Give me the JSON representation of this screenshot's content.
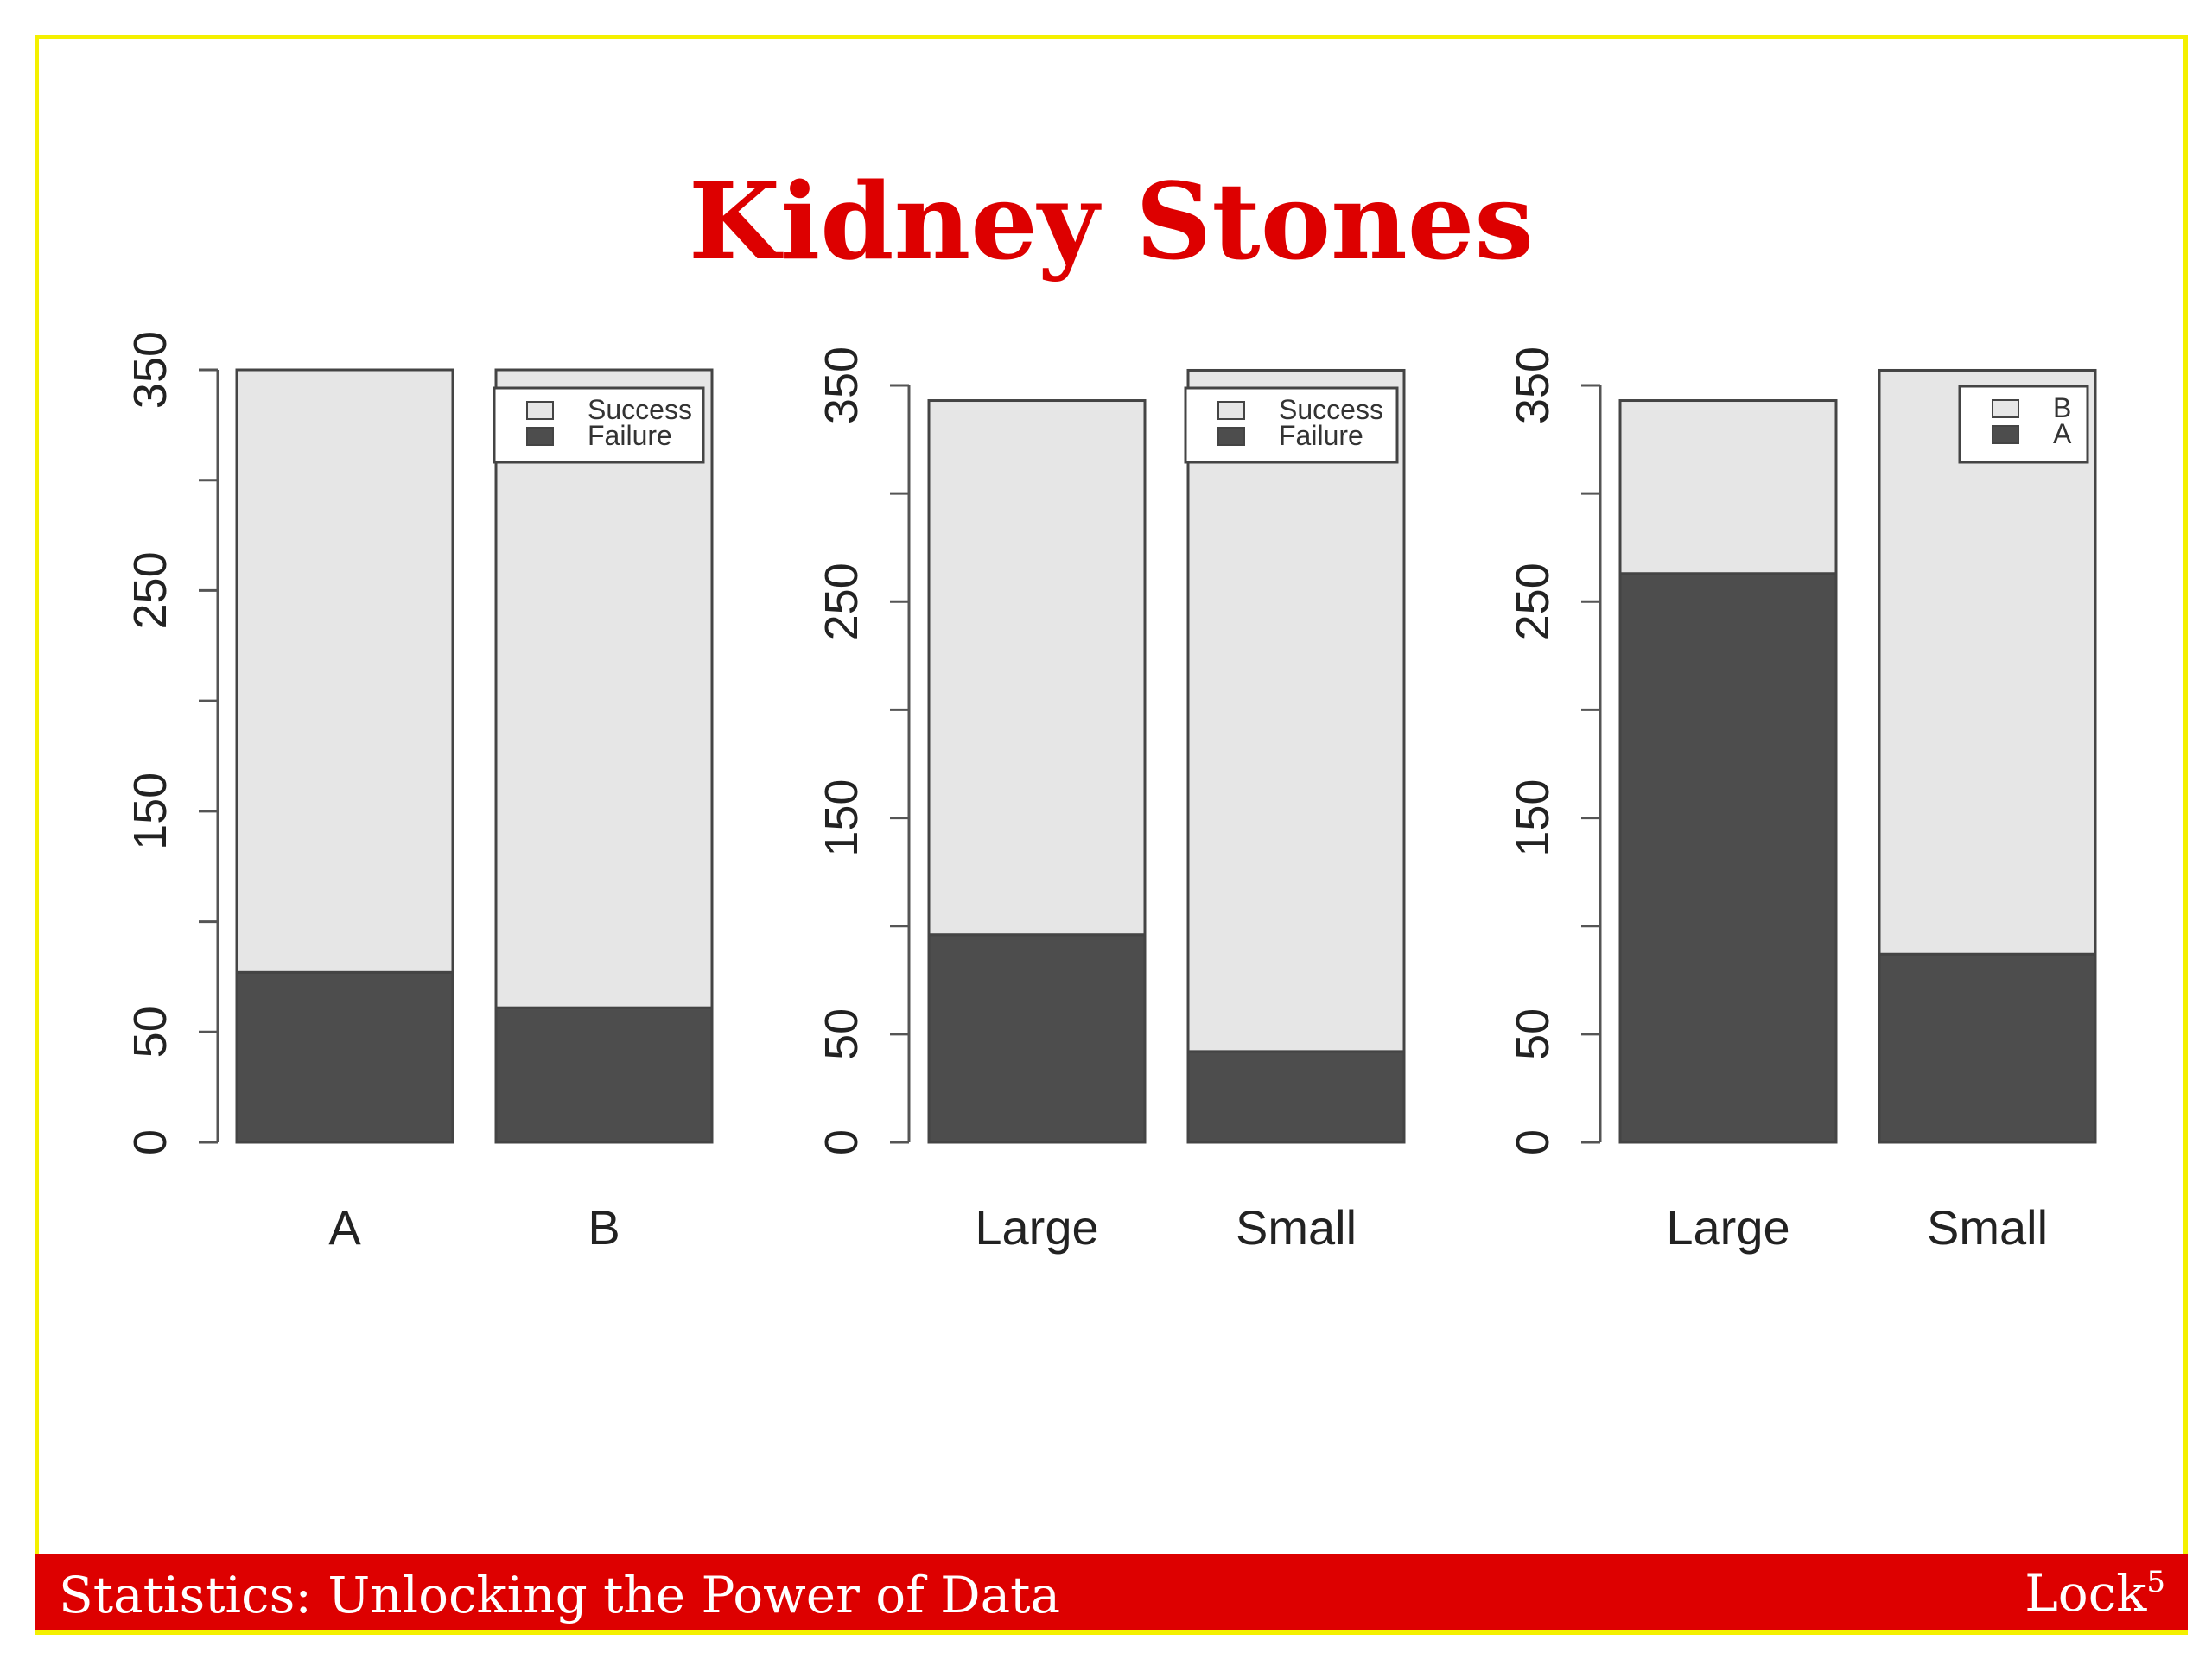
{
  "slide": {
    "title": "Kidney Stones",
    "footer_left": "Statistics: Unlocking the Power of Data",
    "footer_right": "Lock",
    "footer_right_sup": "5"
  },
  "colors": {
    "frame": "#f4f000",
    "title": "#dd0000",
    "footer_bg": "#dd0000",
    "bar_dark": "#4d4d4d",
    "bar_light": "#e6e6e6"
  },
  "chart_data": [
    {
      "type": "bar",
      "stacked": true,
      "categories": [
        "A",
        "B"
      ],
      "series": [
        {
          "name": "Failure",
          "values": [
            77,
            61
          ],
          "color": "#4d4d4d"
        },
        {
          "name": "Success",
          "values": [
            273,
            289
          ],
          "color": "#e6e6e6"
        }
      ],
      "yticks": [
        0,
        50,
        150,
        250,
        350
      ],
      "ylim": [
        0,
        350
      ],
      "legend": [
        "Success",
        "Failure"
      ],
      "legend_position": "top-right"
    },
    {
      "type": "bar",
      "stacked": true,
      "categories": [
        "Large",
        "Small"
      ],
      "series": [
        {
          "name": "Failure",
          "values": [
            96,
            42
          ],
          "color": "#4d4d4d"
        },
        {
          "name": "Success",
          "values": [
            247,
            315
          ],
          "color": "#e6e6e6"
        }
      ],
      "yticks": [
        0,
        50,
        150,
        250,
        350
      ],
      "ylim": [
        0,
        350
      ],
      "legend": [
        "Success",
        "Failure"
      ],
      "legend_position": "top-right"
    },
    {
      "type": "bar",
      "stacked": true,
      "categories": [
        "Large",
        "Small"
      ],
      "series": [
        {
          "name": "A",
          "values": [
            263,
            87
          ],
          "color": "#4d4d4d"
        },
        {
          "name": "B",
          "values": [
            80,
            270
          ],
          "color": "#e6e6e6"
        }
      ],
      "yticks": [
        0,
        50,
        150,
        250,
        350
      ],
      "ylim": [
        0,
        350
      ],
      "legend": [
        "B",
        "A"
      ],
      "legend_position": "top-right"
    }
  ]
}
